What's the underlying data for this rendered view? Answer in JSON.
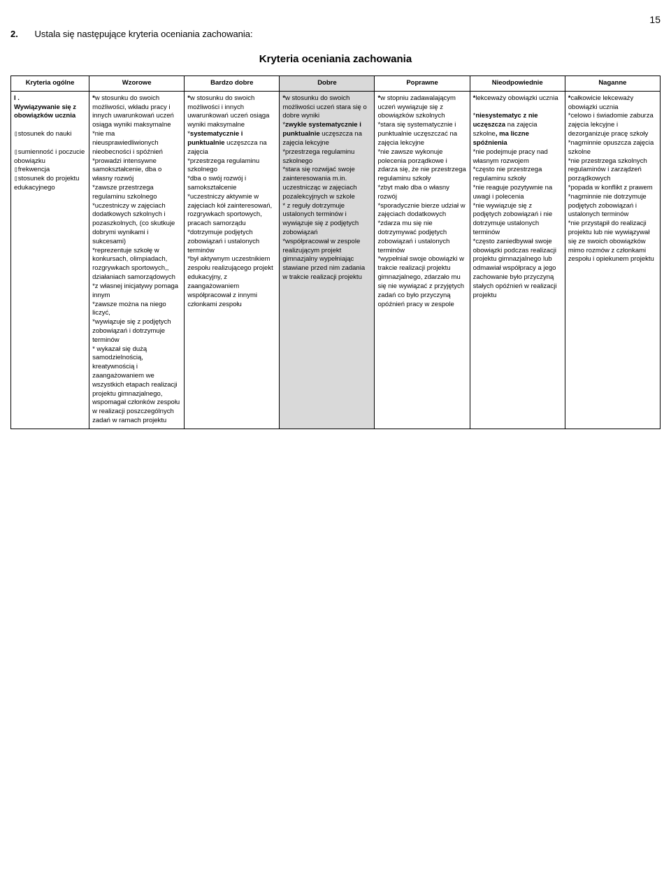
{
  "pageNumber": "15",
  "introNumber": "2.",
  "introText": "Ustala się następujące kryteria oceniania zachowania:",
  "title": "Kryteria oceniania zachowania",
  "headers": {
    "c0": "Kryteria ogólne",
    "c1": "Wzorowe",
    "c2": "Bardzo dobre",
    "c3": "Dobre",
    "c4": "Poprawne",
    "c5": "Nieodpowiednie",
    "c6": "Naganne"
  },
  "row1": {
    "c0": "I . Wywiązywanie się z obowiązków ucznia\n\nstosunek do nauki\n\nsumienność i poczucie obowiązku\nfrekwencja\nstosunek do projektu edukacyjnego",
    "c1": "*w stosunku do swoich możliwości, wkładu pracy i innych uwarunkowań uczeń osiąga wyniki maksymalne\n *nie ma nieusprawiedliwionych nieobecności i spóźnień\n*prowadzi intensywne samokształcenie, dba o własny rozwój\n *zawsze przestrzega regulaminu szkolnego\n*uczestniczy w zajęciach dodatkowych szkolnych i pozaszkolnych, (co skutkuje  dobrymi wynikami i sukcesami)\n*reprezentuje szkołę w konkursach, olimpiadach, rozgrywkach sportowych,, działaniach samorządowych\n*z własnej inicjatywy pomaga innym\n*zawsze można na niego liczyć,\n*wywiązuje się z podjętych zobowiązań i dotrzymuje terminów\n * wykazał się dużą samodzielnością, kreatywnością i zaangażowaniem we wszystkich etapach realizacji projektu gimnazjalnego, wspomagał członków zespołu w realizacji poszczególnych zadań w ramach projektu",
    "c2": "*w stosunku do swoich możliwości i innych uwarunkowań  uczeń osiąga wyniki maksymalne\n *systematycznie i punktualnie uczęszcza na zajęcia\n*przestrzega regulaminu szkolnego\n*dba o swój rozwój i samokształcenie\n *uczestniczy aktywnie w zajęciach kół zainteresowań, rozgrywkach sportowych, pracach samorządu\n*dotrzymuje podjętych zobowiązań i ustalonych terminów\n *był aktywnym uczestnikiem zespołu realizującego projekt edukacyjny, z zaangażowaniem współpracował z innymi członkami zespołu",
    "c3": "*w stosunku do swoich możliwości uczeń stara się o dobre wyniki\n*zwykle systematycznie i punktualnie uczęszcza na zajęcia lekcyjne\n*przestrzega regulaminu szkolnego\n*stara się rozwijać swoje zainteresowania m.in. uczestnicząc w zajęciach pozalekcyjnych w szkole\n * z reguły dotrzymuje ustalonych terminów i wywiązuje się      z podjętych zobowiązań\n *współpracował w zespole realizującym projekt gimnazjalny wypełniając stawiane przed nim zadania w trakcie realizacji projektu",
    "c4": "*w stopniu zadawalającym uczeń wywiązuje się z obowiązków szkolnych\n*stara się systematycznie i punktualnie uczęszczać na zajęcia lekcyjne\n*nie zawsze wykonuje polecenia porządkowe i zdarza się, że nie przestrzega regulaminu szkoły\n *zbyt mało dba o własny rozwój\n *sporadycznie bierze udział w zajęciach dodatkowych\n*zdarza mu się nie dotrzymywać podjętych zobowiązań i ustalonych terminów\n*wypełniał swoje obowiązki w trakcie realizacji projektu gimnazjalnego, zdarzało mu się nie wywiązać z przyjętych zadań co było przyczyną opóźnień pracy w zespole",
    "c5": "*lekceważy obowiązki ucznia\n\n*niesystematycznie uczęszcza na zajęcia szkolne, ma liczne spóźnienia\n*nie podejmuje pracy nad własnym rozwojem\n*często nie przestrzega regulaminu szkoły\n*nie reaguje pozytywnie na uwagi i polecenia\n*nie wywiązuje się z podjętych zobowiązań i nie dotrzymuje ustalonych terminów\n*często zaniedbywał swoje obowiązki podczas realizacji projektu gimnazjalnego lub odmawiał współpracy a jego zachowanie było przyczyną stałych opóźnień w realizacji projektu",
    "c6": "*całkowicie lekceważy obowiązki ucznia\n*celowo i świadomie zaburza zajęcia lekcyjne i dezorganizuje pracę szkoły\n*nagminnie opuszcza zajęcia szkolne\n*nie przestrzega szkolnych regulaminów i zarządzeń porządkowych\n*popada w konflikt z prawem\n*nagminnie nie dotrzymuje podjętych zobowiązań i ustalonych terminów\n*nie przystąpił do realizacji projektu lub nie wywiązywał się ze swoich obowiązków mimo rozmów z członkami zespołu i opiekunem projektu"
  },
  "colWidths": [
    "107",
    "130",
    "130",
    "130",
    "130",
    "130",
    "130"
  ]
}
